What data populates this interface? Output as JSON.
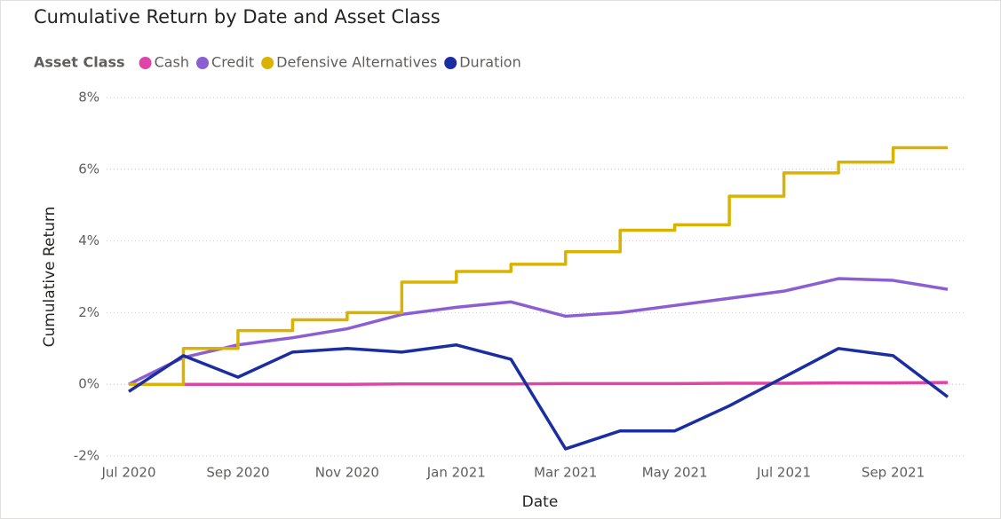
{
  "chart_data": {
    "type": "line",
    "title": "Cumulative Return by Date and Asset Class",
    "legend_title": "Asset Class",
    "x_label": "Date",
    "y_label": "Cumulative Return",
    "x": [
      "2020-07",
      "2020-08",
      "2020-09",
      "2020-10",
      "2020-11",
      "2020-12",
      "2021-01",
      "2021-02",
      "2021-03",
      "2021-04",
      "2021-05",
      "2021-06",
      "2021-07",
      "2021-08",
      "2021-09",
      "2021-10"
    ],
    "xlim": [
      "2020-07",
      "2021-10"
    ],
    "xticks": [
      {
        "value": "2020-07",
        "label": "Jul 2020"
      },
      {
        "value": "2020-09",
        "label": "Sep 2020"
      },
      {
        "value": "2020-11",
        "label": "Nov 2020"
      },
      {
        "value": "2021-01",
        "label": "Jan 2021"
      },
      {
        "value": "2021-03",
        "label": "Mar 2021"
      },
      {
        "value": "2021-05",
        "label": "May 2021"
      },
      {
        "value": "2021-07",
        "label": "Jul 2021"
      },
      {
        "value": "2021-09",
        "label": "Sep 2021"
      }
    ],
    "ylim": [
      -2,
      8
    ],
    "yticks": [
      {
        "value": -2,
        "label": "-2%"
      },
      {
        "value": 0,
        "label": "0%"
      },
      {
        "value": 2,
        "label": "2%"
      },
      {
        "value": 4,
        "label": "4%"
      },
      {
        "value": 6,
        "label": "6%"
      },
      {
        "value": 8,
        "label": "8%"
      }
    ],
    "grid": true,
    "legend_position": "top-left",
    "series": [
      {
        "name": "Cash",
        "color": "#e044a7",
        "step": false,
        "values": [
          0,
          0,
          0,
          0,
          0,
          0.01,
          0.01,
          0.01,
          0.02,
          0.02,
          0.02,
          0.03,
          0.03,
          0.04,
          0.04,
          0.05
        ]
      },
      {
        "name": "Credit",
        "color": "#8b5fd3",
        "step": false,
        "values": [
          0,
          0.75,
          1.1,
          1.3,
          1.55,
          1.95,
          2.15,
          2.3,
          1.9,
          2.0,
          2.2,
          2.4,
          2.6,
          2.95,
          2.9,
          2.65
        ]
      },
      {
        "name": "Defensive Alternatives",
        "color": "#d9b300",
        "step": true,
        "values": [
          0,
          1.0,
          1.5,
          1.8,
          2.0,
          2.85,
          3.15,
          3.35,
          3.7,
          4.3,
          4.45,
          5.25,
          5.9,
          6.2,
          6.6,
          6.6
        ]
      },
      {
        "name": "Duration",
        "color": "#1a2ea1",
        "step": false,
        "values": [
          -0.2,
          0.8,
          0.2,
          0.9,
          1.0,
          0.9,
          1.1,
          0.7,
          -1.8,
          -1.3,
          -1.3,
          -0.6,
          0.2,
          1.0,
          0.8,
          -0.35
        ]
      }
    ]
  }
}
